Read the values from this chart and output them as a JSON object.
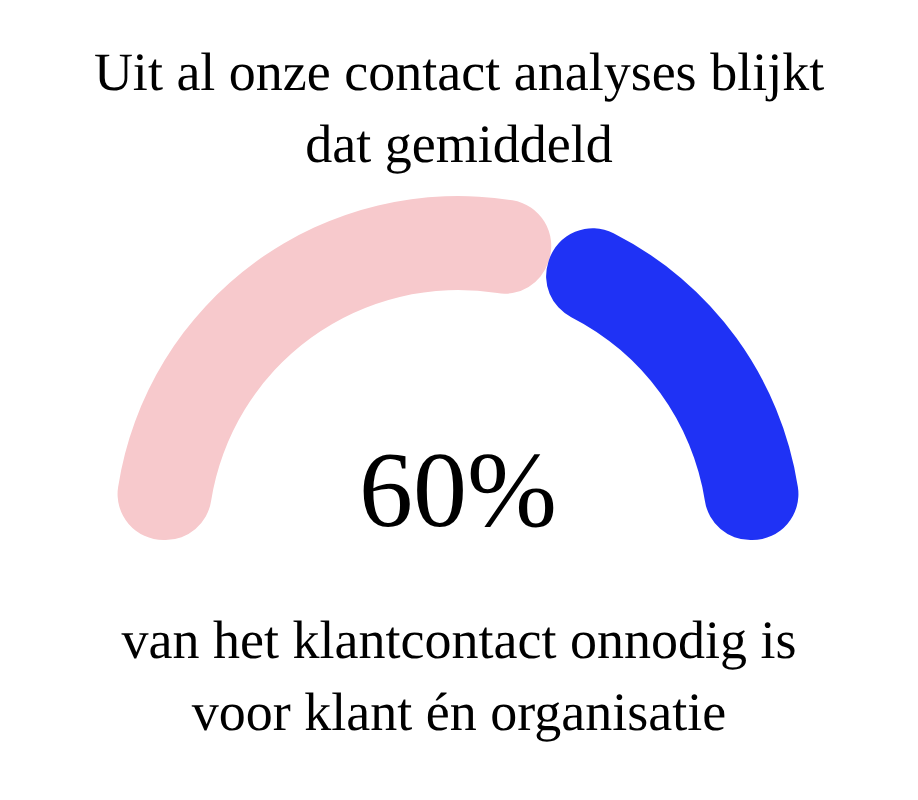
{
  "chart_data": {
    "type": "donut",
    "title": "Uit al onze contact analyses blijkt dat gemiddeld",
    "categories": [
      null,
      null
    ],
    "values": [
      60,
      40
    ],
    "colors": [
      "#f7c9cc",
      "#1f32f5"
    ],
    "annotations": [
      "60%",
      "van het klantcontact onnodig is voor klant én organisatie"
    ]
  }
}
